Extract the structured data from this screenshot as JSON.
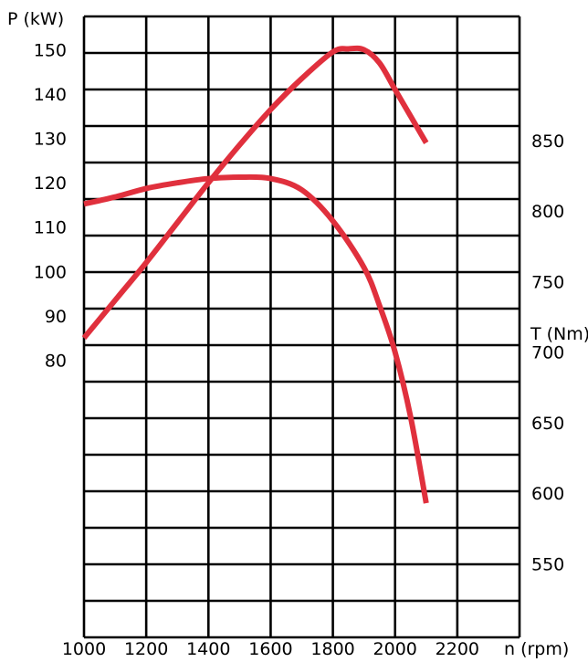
{
  "chart_data": {
    "type": "line",
    "grid": true,
    "x": {
      "label": "n (rpm)",
      "range": [
        1000,
        2400
      ],
      "ticks": [
        1000,
        1200,
        1400,
        1600,
        1800,
        2000,
        2200
      ]
    },
    "power_axis": {
      "label": "P (kW)",
      "ticks": [
        80,
        90,
        100,
        110,
        120,
        130,
        140,
        150
      ],
      "range": [
        17.5,
        157.5
      ]
    },
    "torque_axis": {
      "label": "T (Nm)",
      "ticks": [
        550,
        600,
        650,
        700,
        750,
        800,
        850
      ],
      "range": [
        497.9,
        937.9
      ]
    },
    "series": [
      {
        "axis": "power",
        "color": "#e0303d",
        "points": [
          [
            1000,
            85
          ],
          [
            1100,
            93.5
          ],
          [
            1200,
            102
          ],
          [
            1300,
            111
          ],
          [
            1400,
            120
          ],
          [
            1500,
            128.5
          ],
          [
            1600,
            136.5
          ],
          [
            1700,
            143.5
          ],
          [
            1800,
            149.5
          ],
          [
            1850,
            150.2
          ],
          [
            1900,
            150
          ],
          [
            1950,
            147
          ],
          [
            2000,
            141
          ],
          [
            2050,
            135
          ],
          [
            2100,
            129
          ]
        ]
      },
      {
        "axis": "torque",
        "color": "#e0303d",
        "points": [
          [
            1000,
            805
          ],
          [
            1100,
            810
          ],
          [
            1200,
            816
          ],
          [
            1300,
            820
          ],
          [
            1400,
            823
          ],
          [
            1500,
            824
          ],
          [
            1600,
            823
          ],
          [
            1700,
            815
          ],
          [
            1800,
            793
          ],
          [
            1900,
            760
          ],
          [
            1950,
            733
          ],
          [
            2000,
            700
          ],
          [
            2050,
            654
          ],
          [
            2100,
            593
          ]
        ]
      }
    ]
  }
}
